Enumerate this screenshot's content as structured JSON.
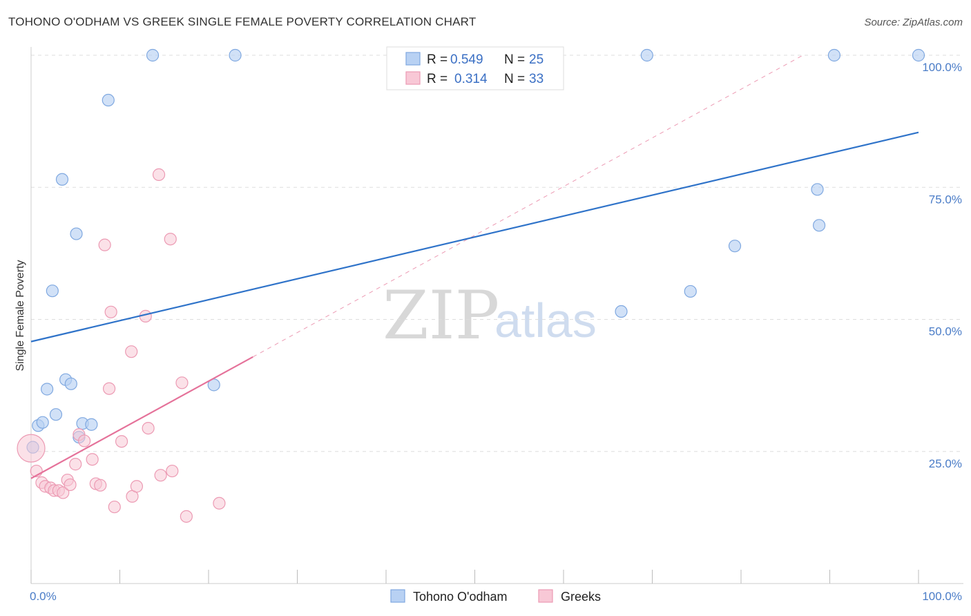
{
  "header": {
    "title": "TOHONO O'ODHAM VS GREEK SINGLE FEMALE POVERTY CORRELATION CHART",
    "source": "Source: ZipAtlas.com"
  },
  "watermark": {
    "zip": "ZIP",
    "atlas": "atlas"
  },
  "colors": {
    "blue_fill": "#b8d1f3",
    "blue_stroke": "#7fa8e0",
    "blue_line": "#2f73c9",
    "pink_fill": "#f8c8d6",
    "pink_stroke": "#ec9ab3",
    "pink_line": "#e5729a",
    "axis_label": "#4a7cc7",
    "grid": "#dddddd"
  },
  "legend": {
    "rows": [
      {
        "r_label": "R =",
        "r_value": "0.549",
        "n_label": "N =",
        "n_value": "25"
      },
      {
        "r_label": "R =",
        "r_value": "0.314",
        "n_label": "N =",
        "n_value": "33"
      }
    ]
  },
  "chart_data": {
    "type": "scatter",
    "title": "TOHONO O'ODHAM VS GREEK SINGLE FEMALE POVERTY CORRELATION CHART",
    "xlabel": "",
    "ylabel": "Single Female Poverty",
    "xlim": [
      0,
      100
    ],
    "ylim": [
      0,
      100
    ],
    "x_tick_labels": [
      "0.0%",
      "100.0%"
    ],
    "y_ticks": [
      25,
      50,
      75,
      100
    ],
    "y_tick_labels": [
      "25.0%",
      "50.0%",
      "75.0%",
      "100.0%"
    ],
    "grid": true,
    "series": [
      {
        "name": "Tohono O'odham",
        "r": 0.549,
        "n": 25,
        "trend": {
          "x0": 0,
          "y0": 45.8,
          "x1": 100,
          "y1": 85.4
        },
        "points": [
          [
            0.2,
            25.8
          ],
          [
            0.8,
            29.9
          ],
          [
            1.3,
            30.5
          ],
          [
            1.8,
            36.8
          ],
          [
            2.4,
            55.4
          ],
          [
            2.8,
            32.0
          ],
          [
            3.5,
            76.5
          ],
          [
            3.9,
            38.6
          ],
          [
            4.5,
            37.8
          ],
          [
            5.1,
            66.2
          ],
          [
            5.4,
            27.7
          ],
          [
            5.8,
            30.3
          ],
          [
            6.8,
            30.1
          ],
          [
            8.7,
            91.5
          ],
          [
            13.7,
            100
          ],
          [
            20.6,
            37.6
          ],
          [
            23.0,
            100
          ],
          [
            66.5,
            51.5
          ],
          [
            69.4,
            100
          ],
          [
            74.3,
            55.3
          ],
          [
            79.3,
            63.9
          ],
          [
            88.6,
            74.6
          ],
          [
            88.8,
            67.8
          ],
          [
            90.5,
            100
          ],
          [
            100,
            100
          ]
        ]
      },
      {
        "name": "Greeks",
        "r": 0.314,
        "n": 33,
        "trend": {
          "x0": 0,
          "y0": 19.9,
          "x1": 25.0,
          "y1": 42.9
        },
        "trend_extension": {
          "x0": 25.0,
          "y0": 42.9,
          "x1": 100,
          "y1": 112
        },
        "points": [
          [
            0.0,
            25.6
          ],
          [
            0.6,
            21.3
          ],
          [
            1.2,
            19.1
          ],
          [
            1.6,
            18.4
          ],
          [
            2.2,
            18.1
          ],
          [
            2.6,
            17.6
          ],
          [
            3.1,
            17.6
          ],
          [
            3.6,
            17.2
          ],
          [
            4.1,
            19.6
          ],
          [
            4.4,
            18.7
          ],
          [
            5.0,
            22.6
          ],
          [
            5.4,
            28.2
          ],
          [
            6.0,
            27.0
          ],
          [
            6.9,
            23.5
          ],
          [
            7.3,
            18.9
          ],
          [
            7.8,
            18.6
          ],
          [
            8.8,
            36.9
          ],
          [
            9.0,
            51.4
          ],
          [
            10.2,
            26.9
          ],
          [
            11.3,
            43.9
          ],
          [
            11.4,
            16.5
          ],
          [
            11.9,
            18.4
          ],
          [
            12.9,
            50.6
          ],
          [
            13.2,
            29.4
          ],
          [
            14.4,
            77.4
          ],
          [
            14.6,
            20.5
          ],
          [
            15.7,
            65.2
          ],
          [
            15.9,
            21.3
          ],
          [
            17.0,
            38.0
          ],
          [
            17.5,
            12.7
          ],
          [
            21.2,
            15.2
          ],
          [
            8.3,
            64.1
          ],
          [
            9.4,
            14.5
          ]
        ]
      }
    ]
  },
  "bottom_legend": {
    "items": [
      {
        "label": "Tohono O'odham"
      },
      {
        "label": "Greeks"
      }
    ]
  }
}
